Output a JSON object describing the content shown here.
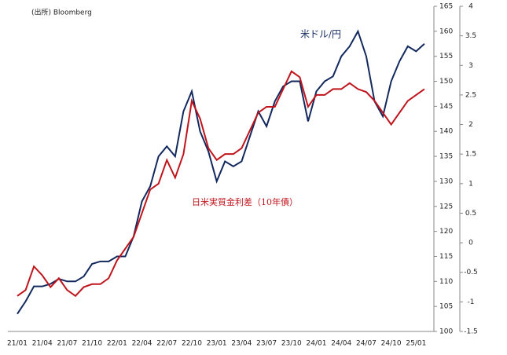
{
  "chart_data": {
    "type": "line",
    "source": "(出所) Bloomberg",
    "annotations": [
      "米ドル/円",
      "日米実質金利差（10年債）"
    ],
    "categories": [
      "21/01",
      null,
      null,
      "21/04",
      null,
      null,
      "21/07",
      null,
      null,
      "21/10",
      null,
      null,
      "22/01",
      null,
      null,
      "22/04",
      null,
      null,
      "22/07",
      null,
      null,
      "22/10",
      null,
      null,
      "23/01",
      null,
      null,
      "23/04",
      null,
      null,
      "23/07",
      null,
      null,
      "23/10",
      null,
      null,
      "24/01",
      null,
      null,
      "24/04",
      null,
      null,
      "24/07",
      null,
      null,
      "24/10",
      null,
      null,
      "25/01",
      null
    ],
    "series": [
      {
        "name": "米ドル/円",
        "color": "#13295e",
        "axis": "y",
        "values": [
          103.5,
          106,
          109,
          109,
          109.5,
          110.5,
          110,
          110,
          111,
          113.5,
          114,
          114,
          115,
          115,
          119,
          126,
          129,
          135,
          137,
          135,
          144,
          148,
          140,
          136,
          130,
          134,
          133,
          134,
          139,
          144,
          141,
          146,
          149,
          150,
          150,
          142,
          148,
          150,
          151,
          155,
          157,
          160,
          155,
          146,
          143,
          150,
          154,
          157,
          156,
          157.5
        ]
      },
      {
        "name": "日米実質金利差（10年債）",
        "color": "#c0141c",
        "axis": "y2",
        "values": [
          -0.9,
          -0.8,
          -0.4,
          -0.55,
          -0.75,
          -0.6,
          -0.8,
          -0.9,
          -0.75,
          -0.7,
          -0.7,
          -0.6,
          -0.3,
          -0.1,
          0.1,
          0.5,
          0.9,
          1.0,
          1.4,
          1.1,
          1.5,
          2.4,
          2.1,
          1.6,
          1.4,
          1.5,
          1.5,
          1.6,
          1.9,
          2.2,
          2.3,
          2.3,
          2.6,
          2.9,
          2.8,
          2.3,
          2.5,
          2.5,
          2.6,
          2.6,
          2.7,
          2.6,
          2.55,
          2.4,
          2.2,
          2.0,
          2.2,
          2.4,
          2.5,
          2.6
        ]
      }
    ],
    "ylim": [
      100,
      165
    ],
    "yticks": [
      100,
      105,
      110,
      115,
      120,
      125,
      130,
      135,
      140,
      145,
      150,
      155,
      160,
      165
    ],
    "y2lim": [
      -1.5,
      4
    ],
    "y2ticks": [
      -1.5,
      -1,
      -0.5,
      0,
      0.5,
      1,
      1.5,
      2,
      2.5,
      3,
      3.5,
      4
    ],
    "grid": false
  }
}
